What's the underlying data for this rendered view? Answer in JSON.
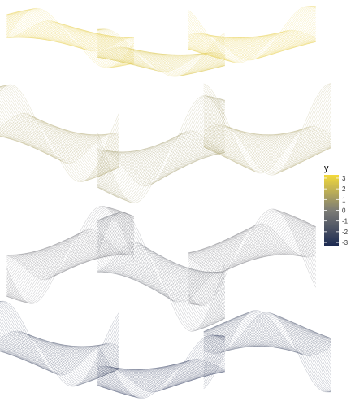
{
  "chart_data": {
    "type": "line",
    "title": "",
    "xlabel": "",
    "ylabel": "",
    "axes_visible": false,
    "grid": false,
    "description_of_marks": "many semi-transparent line paths forming twisted ribbon surfaces, colored by y",
    "color_mapping": {
      "variable": "y",
      "low_color": "#1c2a52",
      "mid_color": "#7d7d76",
      "high_color": "#f3d93a",
      "limits": [
        -3.3,
        3.3
      ]
    },
    "ribbons": [
      {
        "center_x": 0.2,
        "level": 2.9,
        "amplitude": 0.55,
        "phase": 0.0
      },
      {
        "center_x": 0.5,
        "level": 2.6,
        "amplitude": 0.45,
        "phase": 1.2
      },
      {
        "center_x": 0.8,
        "level": 2.9,
        "amplitude": 0.55,
        "phase": 2.1
      },
      {
        "center_x": 0.15,
        "level": 1.2,
        "amplitude": 0.9,
        "phase": 0.6
      },
      {
        "center_x": 0.5,
        "level": 0.9,
        "amplitude": 1.0,
        "phase": 2.8
      },
      {
        "center_x": 0.85,
        "level": 1.2,
        "amplitude": 0.9,
        "phase": 1.7
      },
      {
        "center_x": 0.2,
        "level": -0.9,
        "amplitude": 0.9,
        "phase": 3.4
      },
      {
        "center_x": 0.5,
        "level": -1.2,
        "amplitude": 1.1,
        "phase": 0.3
      },
      {
        "center_x": 0.8,
        "level": -0.9,
        "amplitude": 0.9,
        "phase": 4.0
      },
      {
        "center_x": 0.15,
        "level": -2.5,
        "amplitude": 0.8,
        "phase": 1.0
      },
      {
        "center_x": 0.5,
        "level": -2.9,
        "amplitude": 0.6,
        "phase": 2.4
      },
      {
        "center_x": 0.85,
        "level": -2.5,
        "amplitude": 0.8,
        "phase": 5.1
      }
    ],
    "legend": {
      "title": "y",
      "placement": "right",
      "ticks": [
        3,
        2,
        1,
        0,
        -1,
        -2,
        -3
      ],
      "tick_labels": [
        "3",
        "2",
        "1",
        "0",
        "-1",
        "-2",
        "-3"
      ]
    }
  }
}
